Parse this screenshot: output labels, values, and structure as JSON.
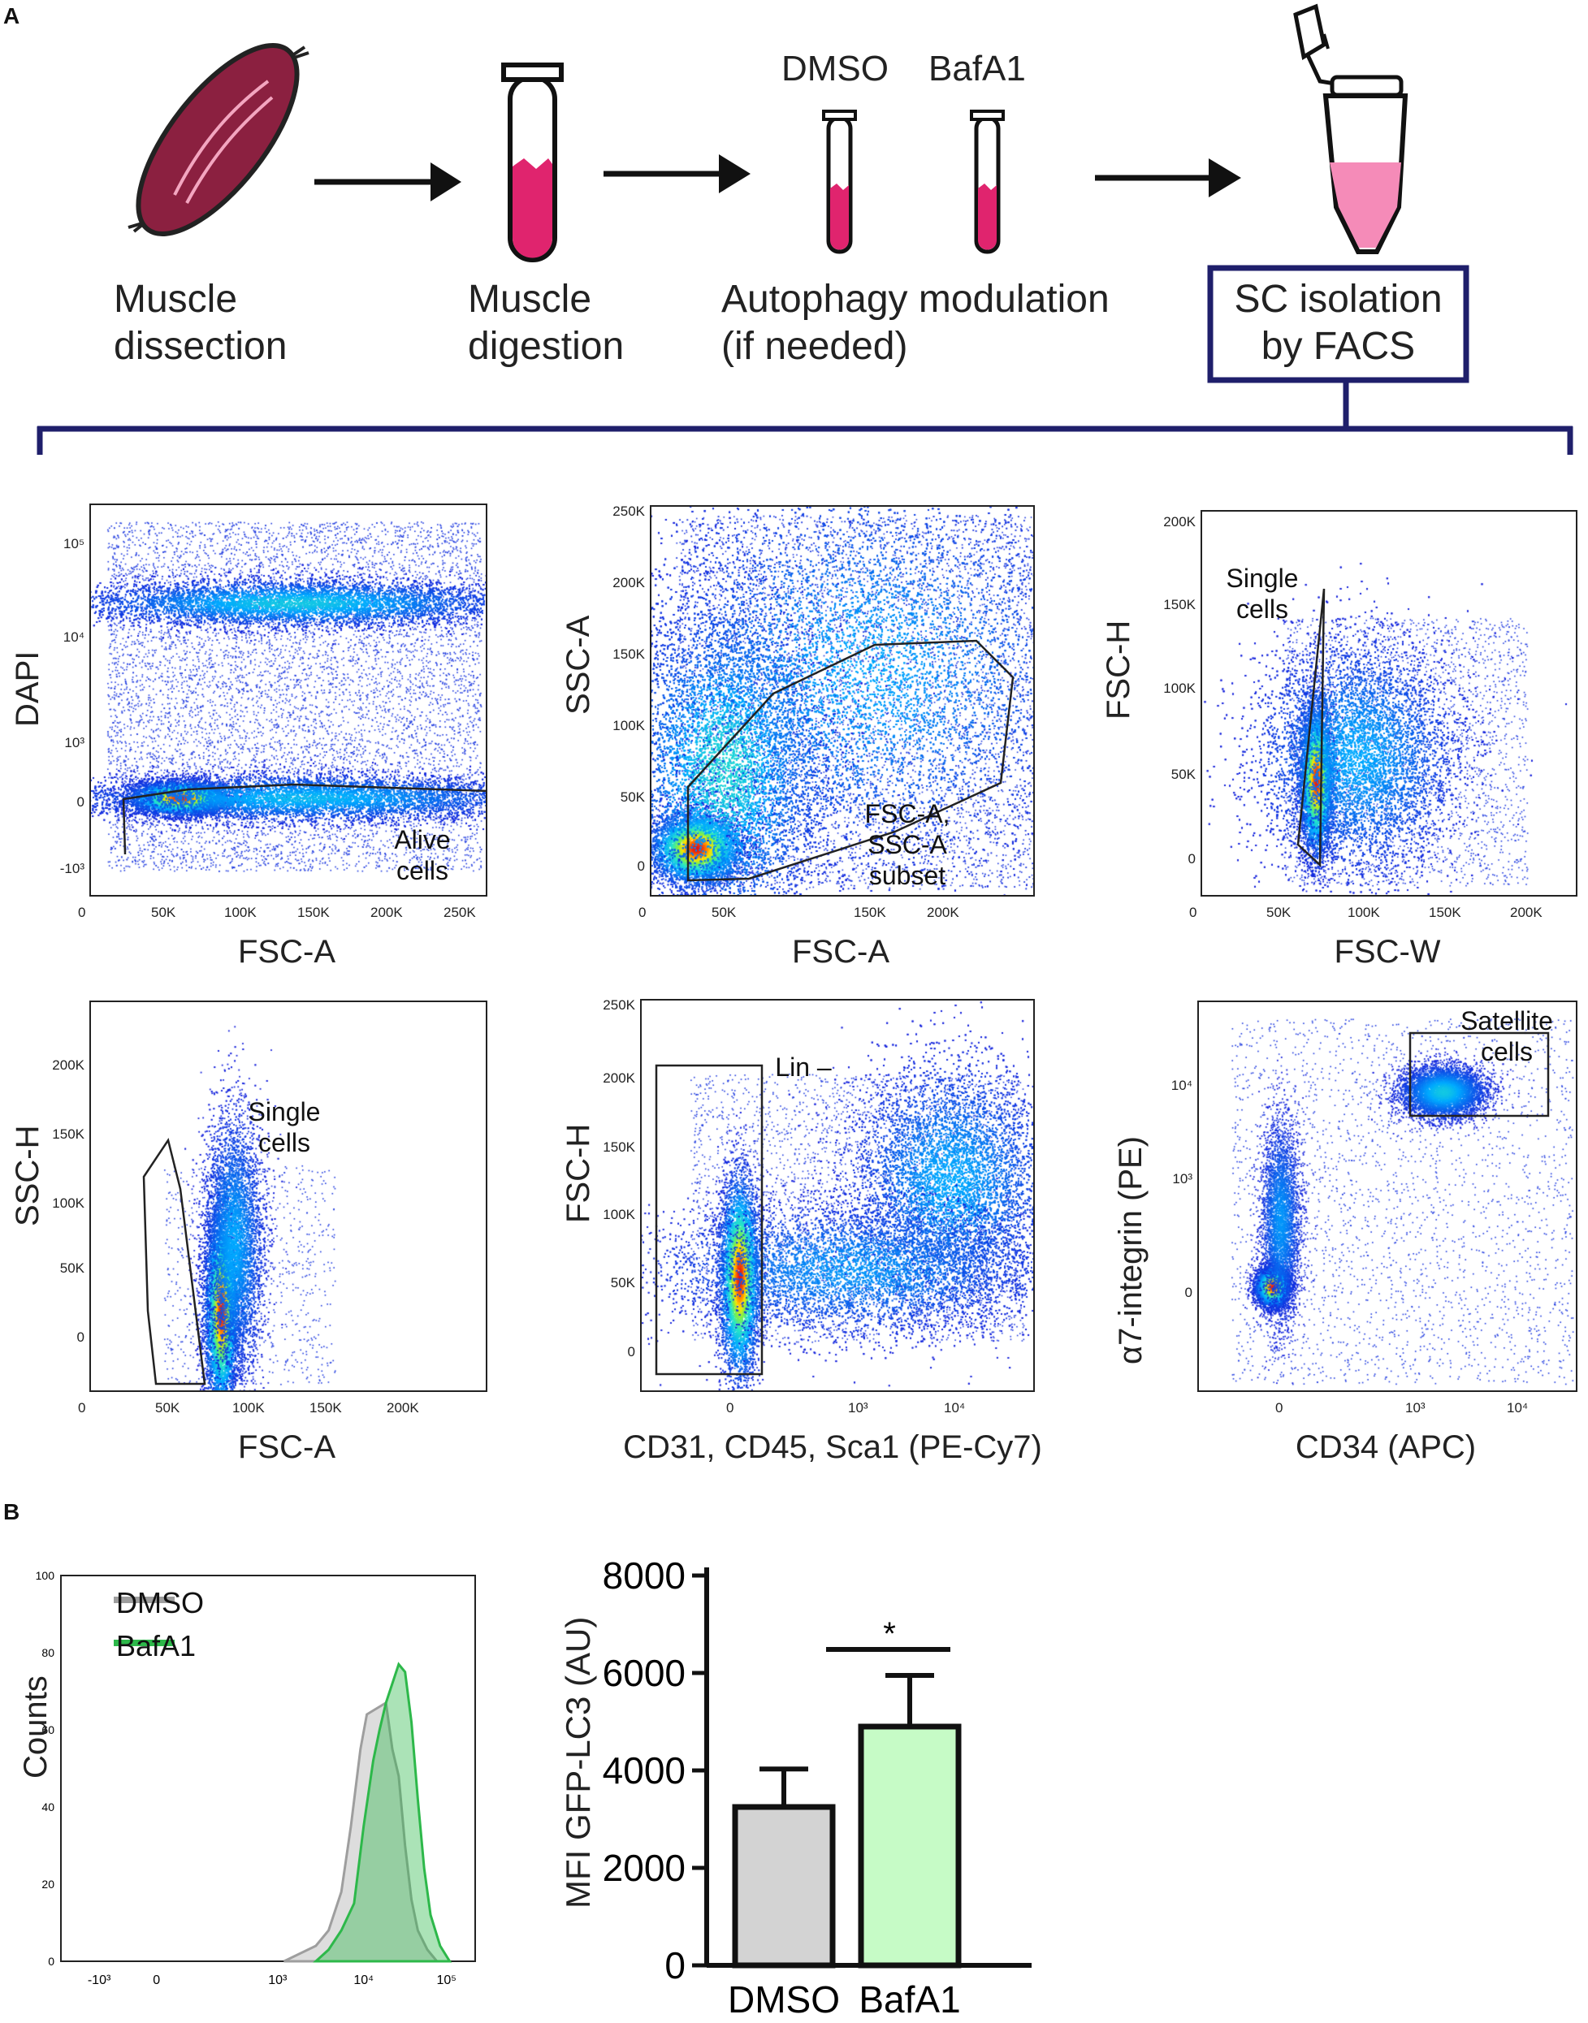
{
  "panels": {
    "a": "A",
    "b": "B"
  },
  "workflow": {
    "steps": [
      {
        "line1": "Muscle",
        "line2": "dissection"
      },
      {
        "line1": "Muscle",
        "line2": "digestion"
      },
      {
        "line1": "Autophagy modulation",
        "line2": "(if needed)"
      },
      {
        "line1": "SC isolation",
        "line2": "by FACS"
      }
    ],
    "tubes": [
      "DMSO",
      "BafA1"
    ],
    "colors": {
      "muscle": "#8b2040",
      "tube_fill": "#e0246e",
      "eppendorf_fill": "#f58bb8",
      "box": "#1f1f6b"
    }
  },
  "flow_plots": [
    {
      "xlabel": "FSC-A",
      "ylabel": "DAPI",
      "xticks": [
        "0",
        "50K",
        "100K",
        "150K",
        "200K",
        "250K"
      ],
      "yticks": [
        "10⁵",
        "10⁴",
        "10³",
        "0",
        "-10³"
      ],
      "gate": "Alive cells"
    },
    {
      "xlabel": "FSC-A",
      "ylabel": "SSC-A",
      "xticks": [
        "0",
        "50K",
        "150K",
        "200K"
      ],
      "yticks": [
        "250K",
        "200K",
        "150K",
        "100K",
        "50K",
        "0"
      ],
      "gate": "FSC-A, SSC-A subset"
    },
    {
      "xlabel": "FSC-W",
      "ylabel": "FSC-H",
      "xticks": [
        "0",
        "50K",
        "100K",
        "150K",
        "200K"
      ],
      "yticks": [
        "200K",
        "150K",
        "100K",
        "50K",
        "0"
      ],
      "gate": "Single cells"
    },
    {
      "xlabel": "FSC-A",
      "ylabel": "SSC-H",
      "xticks": [
        "0",
        "50K",
        "100K",
        "150K",
        "200K"
      ],
      "yticks": [
        "200K",
        "150K",
        "100K",
        "50K",
        "0"
      ],
      "gate": "Single cells"
    },
    {
      "xlabel": "CD31, CD45, Sca1 (PE-Cy7)",
      "ylabel": "FSC-H",
      "xticks": [
        "0",
        "10³",
        "10⁴"
      ],
      "yticks": [
        "250K",
        "200K",
        "150K",
        "100K",
        "50K",
        "0"
      ],
      "gate": "Lin –"
    },
    {
      "xlabel": "CD34 (APC)",
      "ylabel": "α7-integrin (PE)",
      "xticks": [
        "0",
        "10³",
        "10⁴"
      ],
      "yticks": [
        "10⁴",
        "10³",
        "0"
      ],
      "gate": "Satellite cells"
    }
  ],
  "chart_data": [
    {
      "type": "area",
      "title": "",
      "xlabel": "",
      "ylabel": "Counts",
      "xticks": [
        "-10³",
        "0",
        "10³",
        "10⁴",
        "10⁵"
      ],
      "yticks": [
        "100",
        "80",
        "60",
        "40",
        "20",
        "0"
      ],
      "ylim": [
        0,
        100
      ],
      "legend": {
        "position": "top-left",
        "entries": [
          "DMSO",
          "BafA1"
        ]
      },
      "series": [
        {
          "name": "DMSO",
          "color": "#9e9e9e",
          "x": [
            2.3,
            2.8,
            3.0,
            3.2,
            3.35,
            3.5,
            3.6,
            3.7,
            3.8,
            3.9,
            4.0,
            4.1,
            4.2,
            4.3,
            4.4,
            4.55,
            4.7
          ],
          "values": [
            0,
            4,
            8,
            18,
            35,
            55,
            64,
            65,
            66,
            67,
            55,
            48,
            30,
            16,
            8,
            3,
            0
          ]
        },
        {
          "name": "BafA1",
          "color": "#2db84a",
          "x": [
            2.8,
            3.0,
            3.2,
            3.4,
            3.55,
            3.7,
            3.8,
            3.9,
            4.0,
            4.1,
            4.2,
            4.3,
            4.4,
            4.5,
            4.6,
            4.75,
            4.9
          ],
          "values": [
            0,
            3,
            8,
            15,
            35,
            52,
            60,
            67,
            72,
            77,
            75,
            62,
            42,
            24,
            12,
            4,
            0
          ]
        }
      ]
    },
    {
      "type": "bar",
      "title": "",
      "xlabel": "",
      "ylabel": "MFI GFP-LC3 (AU)",
      "categories": [
        "DMSO",
        "BafA1"
      ],
      "values": [
        3250,
        4900
      ],
      "errors": [
        780,
        1050
      ],
      "colors": [
        "#d3d3d3",
        "#c6fbc6"
      ],
      "yticks": [
        "8000",
        "6000",
        "4000",
        "2000",
        "0"
      ],
      "ylim": [
        0,
        8000
      ],
      "significance": "*"
    }
  ]
}
